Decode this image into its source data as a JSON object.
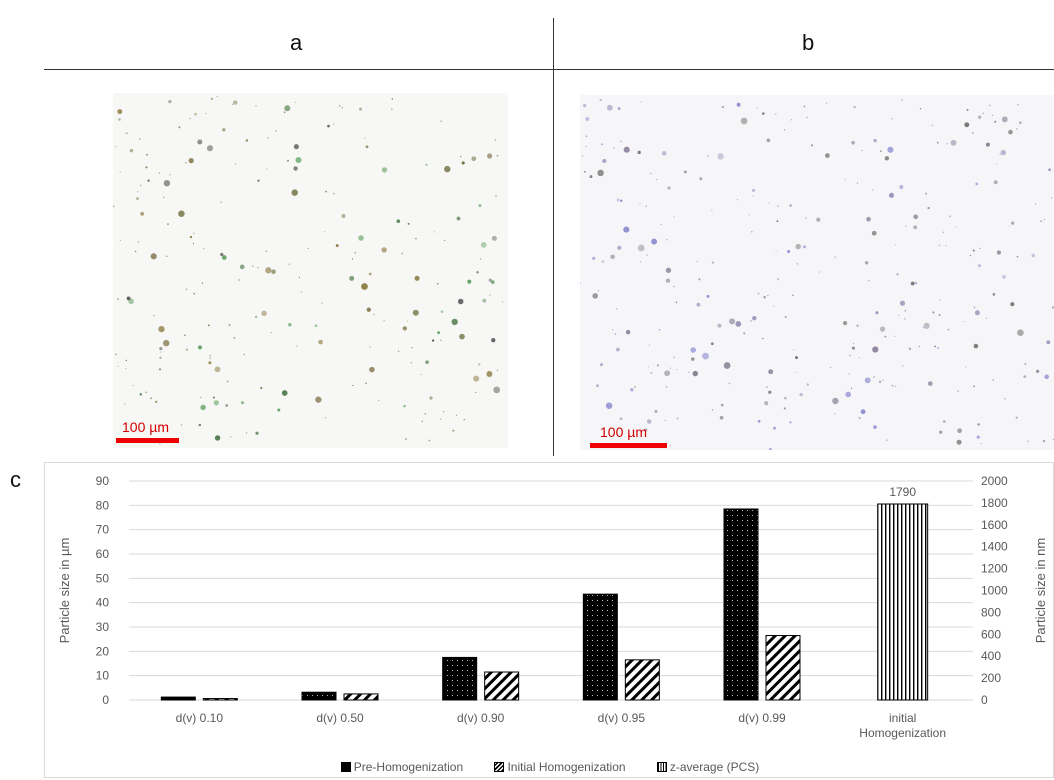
{
  "panels": {
    "a_label": "a",
    "b_label": "b",
    "c_label": "c",
    "scale_a": "100 µm",
    "scale_b": "100 µm"
  },
  "chart_data": {
    "type": "bar",
    "categories": [
      "d(v) 0.10",
      "d(v) 0.50",
      "d(v) 0.90",
      "d(v) 0.95",
      "d(v) 0.99",
      "initial Homogenization"
    ],
    "category_lines": [
      [
        "d(v) 0.10"
      ],
      [
        "d(v) 0.50"
      ],
      [
        "d(v) 0.90"
      ],
      [
        "d(v) 0.95"
      ],
      [
        "d(v) 0.99"
      ],
      [
        "initial",
        "Homogenization"
      ]
    ],
    "series": [
      {
        "name": "Pre-Homogenization",
        "axis": "left",
        "values": [
          1.2,
          3.2,
          17.5,
          43.5,
          78.5,
          null
        ],
        "fill": "black-dotted"
      },
      {
        "name": "Initial Homogenization",
        "axis": "left",
        "values": [
          0.6,
          2.5,
          11.5,
          16.5,
          26.5,
          null
        ],
        "fill": "diagonal-hatch"
      },
      {
        "name": "z-average (PCS)",
        "axis": "right",
        "values": [
          null,
          null,
          null,
          null,
          null,
          1790
        ],
        "fill": "vertical-hatch"
      }
    ],
    "data_labels": [
      {
        "category": "initial Homogenization",
        "series": "z-average (PCS)",
        "text": "1790"
      }
    ],
    "ylabel": "Particle size in µm",
    "ylim": [
      0,
      90
    ],
    "yticks": [
      0,
      10,
      20,
      30,
      40,
      50,
      60,
      70,
      80,
      90
    ],
    "y2label": "Particle size in nm",
    "y2lim": [
      0,
      2000
    ],
    "y2ticks": [
      0,
      200,
      400,
      600,
      800,
      1000,
      1200,
      1400,
      1600,
      1800,
      2000
    ],
    "grid": true,
    "legend_position": "bottom"
  }
}
